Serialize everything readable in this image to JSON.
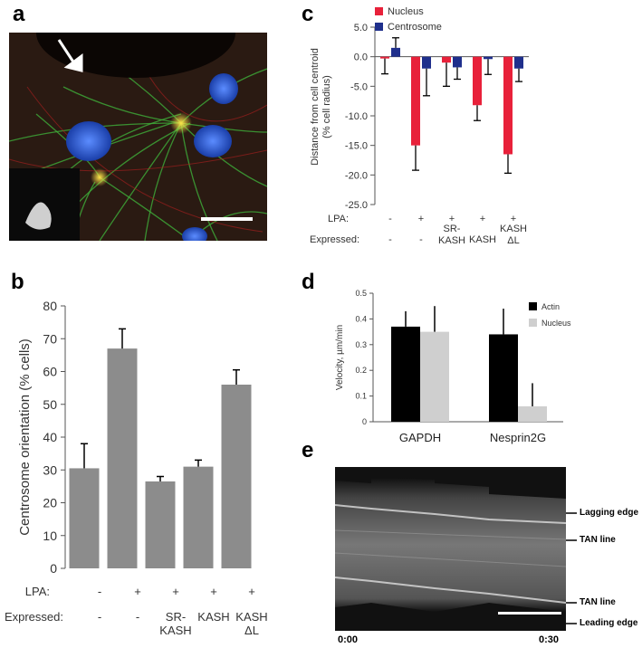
{
  "panels": {
    "a": "a",
    "b": "b",
    "c": "c",
    "d": "d",
    "e": "e"
  },
  "chart_data": [
    {
      "id": "b",
      "type": "bar",
      "ylabel": "Centrosome orientation (% cells)",
      "ylim": [
        0,
        80
      ],
      "yticks": [
        0,
        10,
        20,
        30,
        40,
        50,
        60,
        70,
        80
      ],
      "row_labels": [
        "LPA:",
        "Expressed:"
      ],
      "lpa": [
        "-",
        "+",
        "+",
        "+",
        "+"
      ],
      "expressed": [
        [
          "-"
        ],
        [
          "-"
        ],
        [
          "SR-",
          "KASH"
        ],
        [
          "KASH"
        ],
        [
          "KASH",
          "ΔL"
        ]
      ],
      "values": [
        30.5,
        67,
        26.5,
        31,
        56
      ],
      "errors": [
        7.5,
        6,
        1.5,
        2,
        4.5
      ],
      "color": "#8c8c8c"
    },
    {
      "id": "c",
      "type": "bar",
      "ylabel": [
        "Distance from cell centroid",
        "(% cell radius)"
      ],
      "ylim": [
        -25,
        5
      ],
      "yticks": [
        5.0,
        0.0,
        -5.0,
        -10.0,
        -15.0,
        -20.0,
        -25.0
      ],
      "row_labels": [
        "LPA:",
        "Expressed:"
      ],
      "lpa": [
        "-",
        "+",
        "+",
        "+",
        "+"
      ],
      "expressed": [
        [
          "-"
        ],
        [
          "-"
        ],
        [
          "SR-",
          "KASH"
        ],
        [
          "KASH"
        ],
        [
          "KASH",
          "ΔL"
        ]
      ],
      "series": [
        {
          "name": "Nucleus",
          "color": "#e8213a",
          "values": [
            -0.3,
            -15,
            -1,
            -8.2,
            -16.5
          ],
          "errors": [
            2.6,
            4.2,
            4.0,
            2.6,
            3.2
          ]
        },
        {
          "name": "Centrosome",
          "color": "#1f2f8c",
          "values": [
            1.5,
            -2,
            -1.8,
            -0.4,
            -2
          ],
          "errors": [
            1.7,
            4.6,
            2.0,
            2.6,
            2.2
          ]
        }
      ]
    },
    {
      "id": "d",
      "type": "bar",
      "ylabel": "Velocity, µm/min",
      "ylim": [
        0,
        0.5
      ],
      "yticks": [
        0,
        0.1,
        0.2,
        0.3,
        0.4,
        0.5
      ],
      "categories": [
        "GAPDH",
        "Nesprin2G"
      ],
      "series": [
        {
          "name": "Actin",
          "color": "#000000",
          "values": [
            0.37,
            0.34
          ],
          "errors": [
            0.06,
            0.1
          ]
        },
        {
          "name": "Nucleus",
          "color": "#cfcfcf",
          "values": [
            0.35,
            0.06
          ],
          "errors": [
            0.1,
            0.09
          ]
        }
      ]
    }
  ],
  "kymograph": {
    "labels": [
      "Lagging edge",
      "TAN line",
      "TAN line",
      "Leading edge"
    ],
    "time_start": "0:00",
    "time_end": "0:30"
  },
  "colors": {
    "nucleus_stain": "#2a5fd6",
    "microtubules": "#3fae3a",
    "actin": "#b02020"
  }
}
